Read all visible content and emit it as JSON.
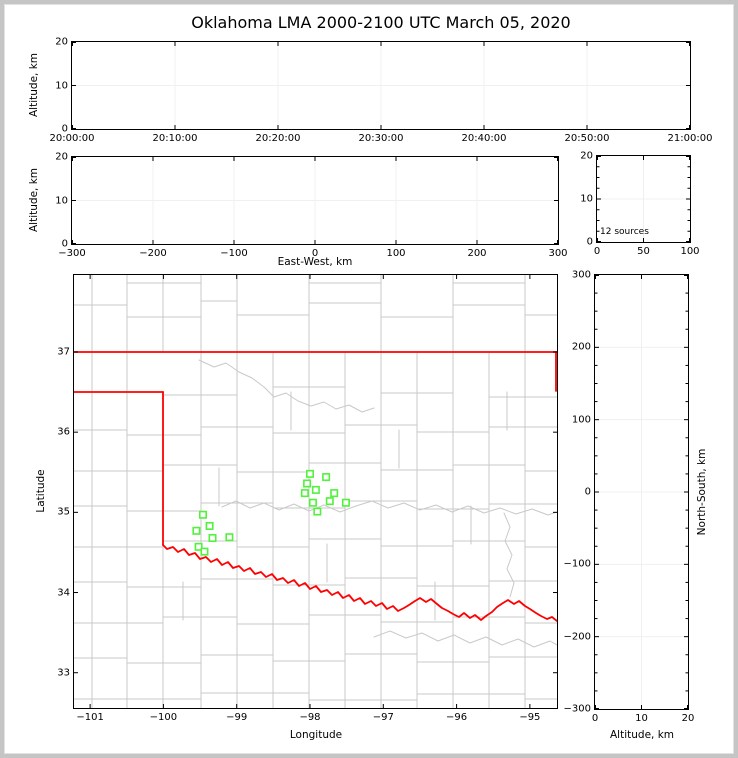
{
  "title": "Oklahoma LMA 2000-2100 UTC March 05, 2020",
  "colors": {
    "state_border": "#ff0000",
    "county": "#c9c9c9",
    "station": "#50f23c",
    "grid": "#f0f0f0",
    "axis": "#000000",
    "frame": "#c5c5c5"
  },
  "panels": {
    "time_height": {
      "ylabel": "Altitude, km",
      "yticks": [
        "20",
        "10",
        "0"
      ],
      "xticks": [
        "20:00:00",
        "20:10:00",
        "20:20:00",
        "20:30:00",
        "20:40:00",
        "20:50:00",
        "21:00:00"
      ]
    },
    "ew_height": {
      "ylabel": "Altitude, km",
      "xlabel": "East-West, km",
      "yticks": [
        "20",
        "10",
        "0"
      ],
      "xticks": [
        "−300",
        "−200",
        "−100",
        "0",
        "100",
        "200",
        "300"
      ]
    },
    "histogram": {
      "yticks": [
        "20",
        "10",
        "0"
      ],
      "xticks": [
        "0",
        "50",
        "100"
      ],
      "annotation": "12 sources"
    },
    "plan_view": {
      "ylabel": "Latitude",
      "xlabel": "Longitude",
      "yticks": [
        "37",
        "36",
        "35",
        "34",
        "33"
      ],
      "xticks": [
        "−101",
        "−100",
        "−99",
        "−98",
        "−97",
        "−96",
        "−95"
      ]
    },
    "ns_height": {
      "ylabel": "North-South, km",
      "xlabel": "Altitude, km",
      "yticks": [
        "300",
        "200",
        "100",
        "0",
        "−100",
        "−200",
        "−300"
      ],
      "xticks": [
        "0",
        "10",
        "20"
      ]
    }
  },
  "chart_data": [
    {
      "id": "altitude_vs_time",
      "type": "scatter",
      "title": "Oklahoma LMA 2000-2100 UTC March 05, 2020",
      "ylabel": "Altitude, km",
      "x_range": [
        "20:00:00",
        "21:00:00"
      ],
      "y_range": [
        0,
        20
      ],
      "points": []
    },
    {
      "id": "altitude_vs_eastwest",
      "type": "scatter",
      "xlabel": "East-West, km",
      "ylabel": "Altitude, km",
      "x_range": [
        -300,
        300
      ],
      "y_range": [
        0,
        20
      ],
      "points": []
    },
    {
      "id": "altitude_histogram",
      "type": "histogram",
      "x_range": [
        0,
        100
      ],
      "y_range": [
        0,
        20
      ],
      "annotation": "12 sources",
      "bins": []
    },
    {
      "id": "plan_view_map",
      "type": "scatter",
      "xlabel": "Longitude",
      "ylabel": "Latitude",
      "x_range": [
        -101.22,
        -94.63
      ],
      "y_range": [
        32.56,
        37.96
      ],
      "xtick_values": [
        -101,
        -100,
        -99,
        -98,
        -97,
        -96,
        -95
      ],
      "ytick_values": [
        37,
        36,
        35,
        34,
        33
      ],
      "series": [
        {
          "name": "lma_stations",
          "marker": "open-square",
          "color": "#50f23c",
          "points": [
            [
              -98.0,
              35.48
            ],
            [
              -97.78,
              35.44
            ],
            [
              -98.04,
              35.36
            ],
            [
              -97.92,
              35.28
            ],
            [
              -98.07,
              35.24
            ],
            [
              -97.67,
              35.24
            ],
            [
              -97.96,
              35.12
            ],
            [
              -97.73,
              35.14
            ],
            [
              -97.51,
              35.12
            ],
            [
              -97.9,
              35.01
            ],
            [
              -99.46,
              34.97
            ],
            [
              -99.37,
              34.83
            ],
            [
              -99.55,
              34.77
            ],
            [
              -99.33,
              34.68
            ],
            [
              -99.1,
              34.69
            ],
            [
              -99.52,
              34.57
            ],
            [
              -99.44,
              34.51
            ]
          ]
        }
      ]
    },
    {
      "id": "northsouth_vs_altitude",
      "type": "scatter",
      "xlabel": "Altitude, km",
      "ylabel": "North-South, km",
      "x_range": [
        0,
        20
      ],
      "y_range": [
        -300,
        300
      ],
      "points": []
    }
  ],
  "map_geometry": {
    "counties": [
      [
        18,
        0,
        18,
        433
      ],
      [
        53,
        0,
        53,
        433
      ],
      [
        89,
        0,
        89,
        77
      ],
      [
        89,
        270,
        89,
        433
      ],
      [
        127,
        0,
        127,
        433
      ],
      [
        163,
        0,
        163,
        433
      ],
      [
        199,
        77,
        199,
        433
      ],
      [
        235,
        0,
        235,
        433
      ],
      [
        271,
        77,
        271,
        433
      ],
      [
        307,
        0,
        307,
        433
      ],
      [
        343,
        77,
        343,
        433
      ],
      [
        379,
        0,
        379,
        433
      ],
      [
        415,
        77,
        415,
        433
      ],
      [
        451,
        0,
        451,
        433
      ],
      [
        145,
        193,
        145,
        231
      ],
      [
        217,
        117,
        217,
        155
      ],
      [
        253,
        269,
        253,
        307
      ],
      [
        325,
        155,
        325,
        193
      ],
      [
        397,
        231,
        397,
        269
      ],
      [
        433,
        117,
        433,
        155
      ],
      [
        361,
        307,
        361,
        345
      ],
      [
        109,
        307,
        109,
        345
      ],
      [
        53,
        8,
        127,
        8
      ],
      [
        235,
        8,
        307,
        8
      ],
      [
        379,
        8,
        451,
        8
      ],
      [
        0,
        30,
        53,
        30
      ],
      [
        53,
        42,
        127,
        42
      ],
      [
        127,
        26,
        163,
        26
      ],
      [
        163,
        40,
        235,
        40
      ],
      [
        235,
        28,
        307,
        28
      ],
      [
        307,
        42,
        379,
        42
      ],
      [
        379,
        30,
        451,
        30
      ],
      [
        451,
        40,
        483,
        40
      ],
      [
        89,
        120,
        163,
        120
      ],
      [
        199,
        112,
        271,
        112
      ],
      [
        307,
        118,
        379,
        118
      ],
      [
        415,
        122,
        483,
        122
      ],
      [
        0,
        155,
        53,
        155
      ],
      [
        53,
        160,
        127,
        160
      ],
      [
        127,
        152,
        199,
        152
      ],
      [
        199,
        158,
        271,
        158
      ],
      [
        271,
        150,
        343,
        150
      ],
      [
        343,
        157,
        415,
        157
      ],
      [
        415,
        152,
        483,
        152
      ],
      [
        0,
        196,
        89,
        196
      ],
      [
        89,
        190,
        163,
        190
      ],
      [
        163,
        197,
        235,
        197
      ],
      [
        235,
        188,
        307,
        188
      ],
      [
        307,
        195,
        379,
        195
      ],
      [
        379,
        190,
        451,
        190
      ],
      [
        451,
        196,
        483,
        196
      ],
      [
        0,
        231,
        53,
        231
      ],
      [
        53,
        236,
        127,
        236
      ],
      [
        127,
        228,
        199,
        228
      ],
      [
        199,
        233,
        271,
        233
      ],
      [
        271,
        226,
        343,
        226
      ],
      [
        343,
        234,
        415,
        234
      ],
      [
        415,
        229,
        483,
        229
      ],
      [
        0,
        272,
        89,
        272
      ],
      [
        89,
        266,
        163,
        266
      ],
      [
        163,
        272,
        235,
        272
      ],
      [
        235,
        264,
        307,
        264
      ],
      [
        307,
        271,
        379,
        271
      ],
      [
        379,
        266,
        451,
        266
      ],
      [
        451,
        272,
        483,
        272
      ],
      [
        0,
        307,
        53,
        307
      ],
      [
        53,
        312,
        127,
        312
      ],
      [
        127,
        304,
        199,
        304
      ],
      [
        199,
        310,
        271,
        310
      ],
      [
        271,
        303,
        343,
        303
      ],
      [
        343,
        311,
        415,
        311
      ],
      [
        415,
        306,
        483,
        306
      ],
      [
        0,
        348,
        89,
        348
      ],
      [
        89,
        342,
        163,
        342
      ],
      [
        163,
        349,
        235,
        349
      ],
      [
        235,
        340,
        307,
        340
      ],
      [
        307,
        347,
        379,
        347
      ],
      [
        379,
        342,
        451,
        342
      ],
      [
        451,
        348,
        483,
        348
      ],
      [
        0,
        383,
        53,
        383
      ],
      [
        53,
        388,
        127,
        388
      ],
      [
        127,
        380,
        199,
        380
      ],
      [
        199,
        386,
        271,
        386
      ],
      [
        271,
        379,
        343,
        379
      ],
      [
        343,
        387,
        415,
        387
      ],
      [
        415,
        382,
        483,
        382
      ],
      [
        0,
        424,
        127,
        424
      ],
      [
        127,
        418,
        235,
        418
      ],
      [
        235,
        425,
        343,
        425
      ],
      [
        343,
        419,
        451,
        419
      ],
      [
        451,
        424,
        483,
        424
      ]
    ],
    "gray_rivers": [
      [
        125,
        85,
        140,
        92,
        152,
        88,
        165,
        97,
        178,
        103,
        190,
        112,
        200,
        122,
        212,
        118,
        224,
        126,
        237,
        131,
        250,
        127,
        262,
        134,
        275,
        130,
        288,
        137,
        300,
        133
      ],
      [
        148,
        232,
        162,
        226,
        176,
        233,
        190,
        228,
        205,
        235,
        220,
        229,
        235,
        236,
        250,
        230,
        266,
        237,
        282,
        231,
        298,
        226,
        314,
        233,
        330,
        228,
        346,
        235,
        362,
        230,
        378,
        237,
        394,
        231,
        410,
        238,
        426,
        233,
        442,
        239,
        458,
        234,
        474,
        240,
        483,
        237
      ],
      [
        300,
        362,
        316,
        356,
        332,
        363,
        348,
        358,
        364,
        366,
        380,
        360,
        396,
        368,
        412,
        362,
        428,
        370,
        444,
        364,
        460,
        372,
        476,
        366,
        483,
        370
      ],
      [
        430,
        238,
        436,
        252,
        431,
        266,
        438,
        280,
        433,
        294,
        440,
        308,
        436,
        322
      ]
    ],
    "state_border_segments": [
      [
        0,
        77,
        483,
        77
      ],
      [
        0,
        117,
        89,
        117
      ],
      [
        89,
        117,
        89,
        270
      ],
      [
        482,
        77,
        482,
        116
      ]
    ],
    "red_river": [
      89,
      270,
      93,
      274,
      99,
      272,
      104,
      277,
      110,
      274,
      115,
      280,
      121,
      278,
      126,
      284,
      132,
      282,
      137,
      287,
      143,
      284,
      148,
      290,
      154,
      287,
      159,
      293,
      165,
      291,
      170,
      296,
      176,
      293,
      181,
      299,
      187,
      297,
      192,
      302,
      198,
      299,
      203,
      305,
      209,
      303,
      214,
      308,
      220,
      305,
      225,
      311,
      231,
      308,
      236,
      314,
      242,
      311,
      247,
      317,
      253,
      315,
      258,
      320,
      264,
      317,
      269,
      323,
      275,
      320,
      280,
      326,
      286,
      323,
      291,
      329,
      297,
      326,
      302,
      331,
      308,
      328,
      313,
      334,
      319,
      331,
      324,
      336,
      330,
      333,
      335,
      330,
      341,
      326,
      346,
      323,
      352,
      327,
      357,
      324,
      363,
      329,
      368,
      333,
      374,
      336,
      379,
      339,
      385,
      342,
      390,
      338,
      396,
      343,
      401,
      340,
      407,
      345,
      412,
      341,
      418,
      337,
      423,
      332,
      429,
      328,
      434,
      325,
      440,
      329,
      445,
      326,
      451,
      331,
      456,
      334,
      462,
      338,
      467,
      341,
      473,
      344,
      478,
      342,
      483,
      346
    ]
  }
}
